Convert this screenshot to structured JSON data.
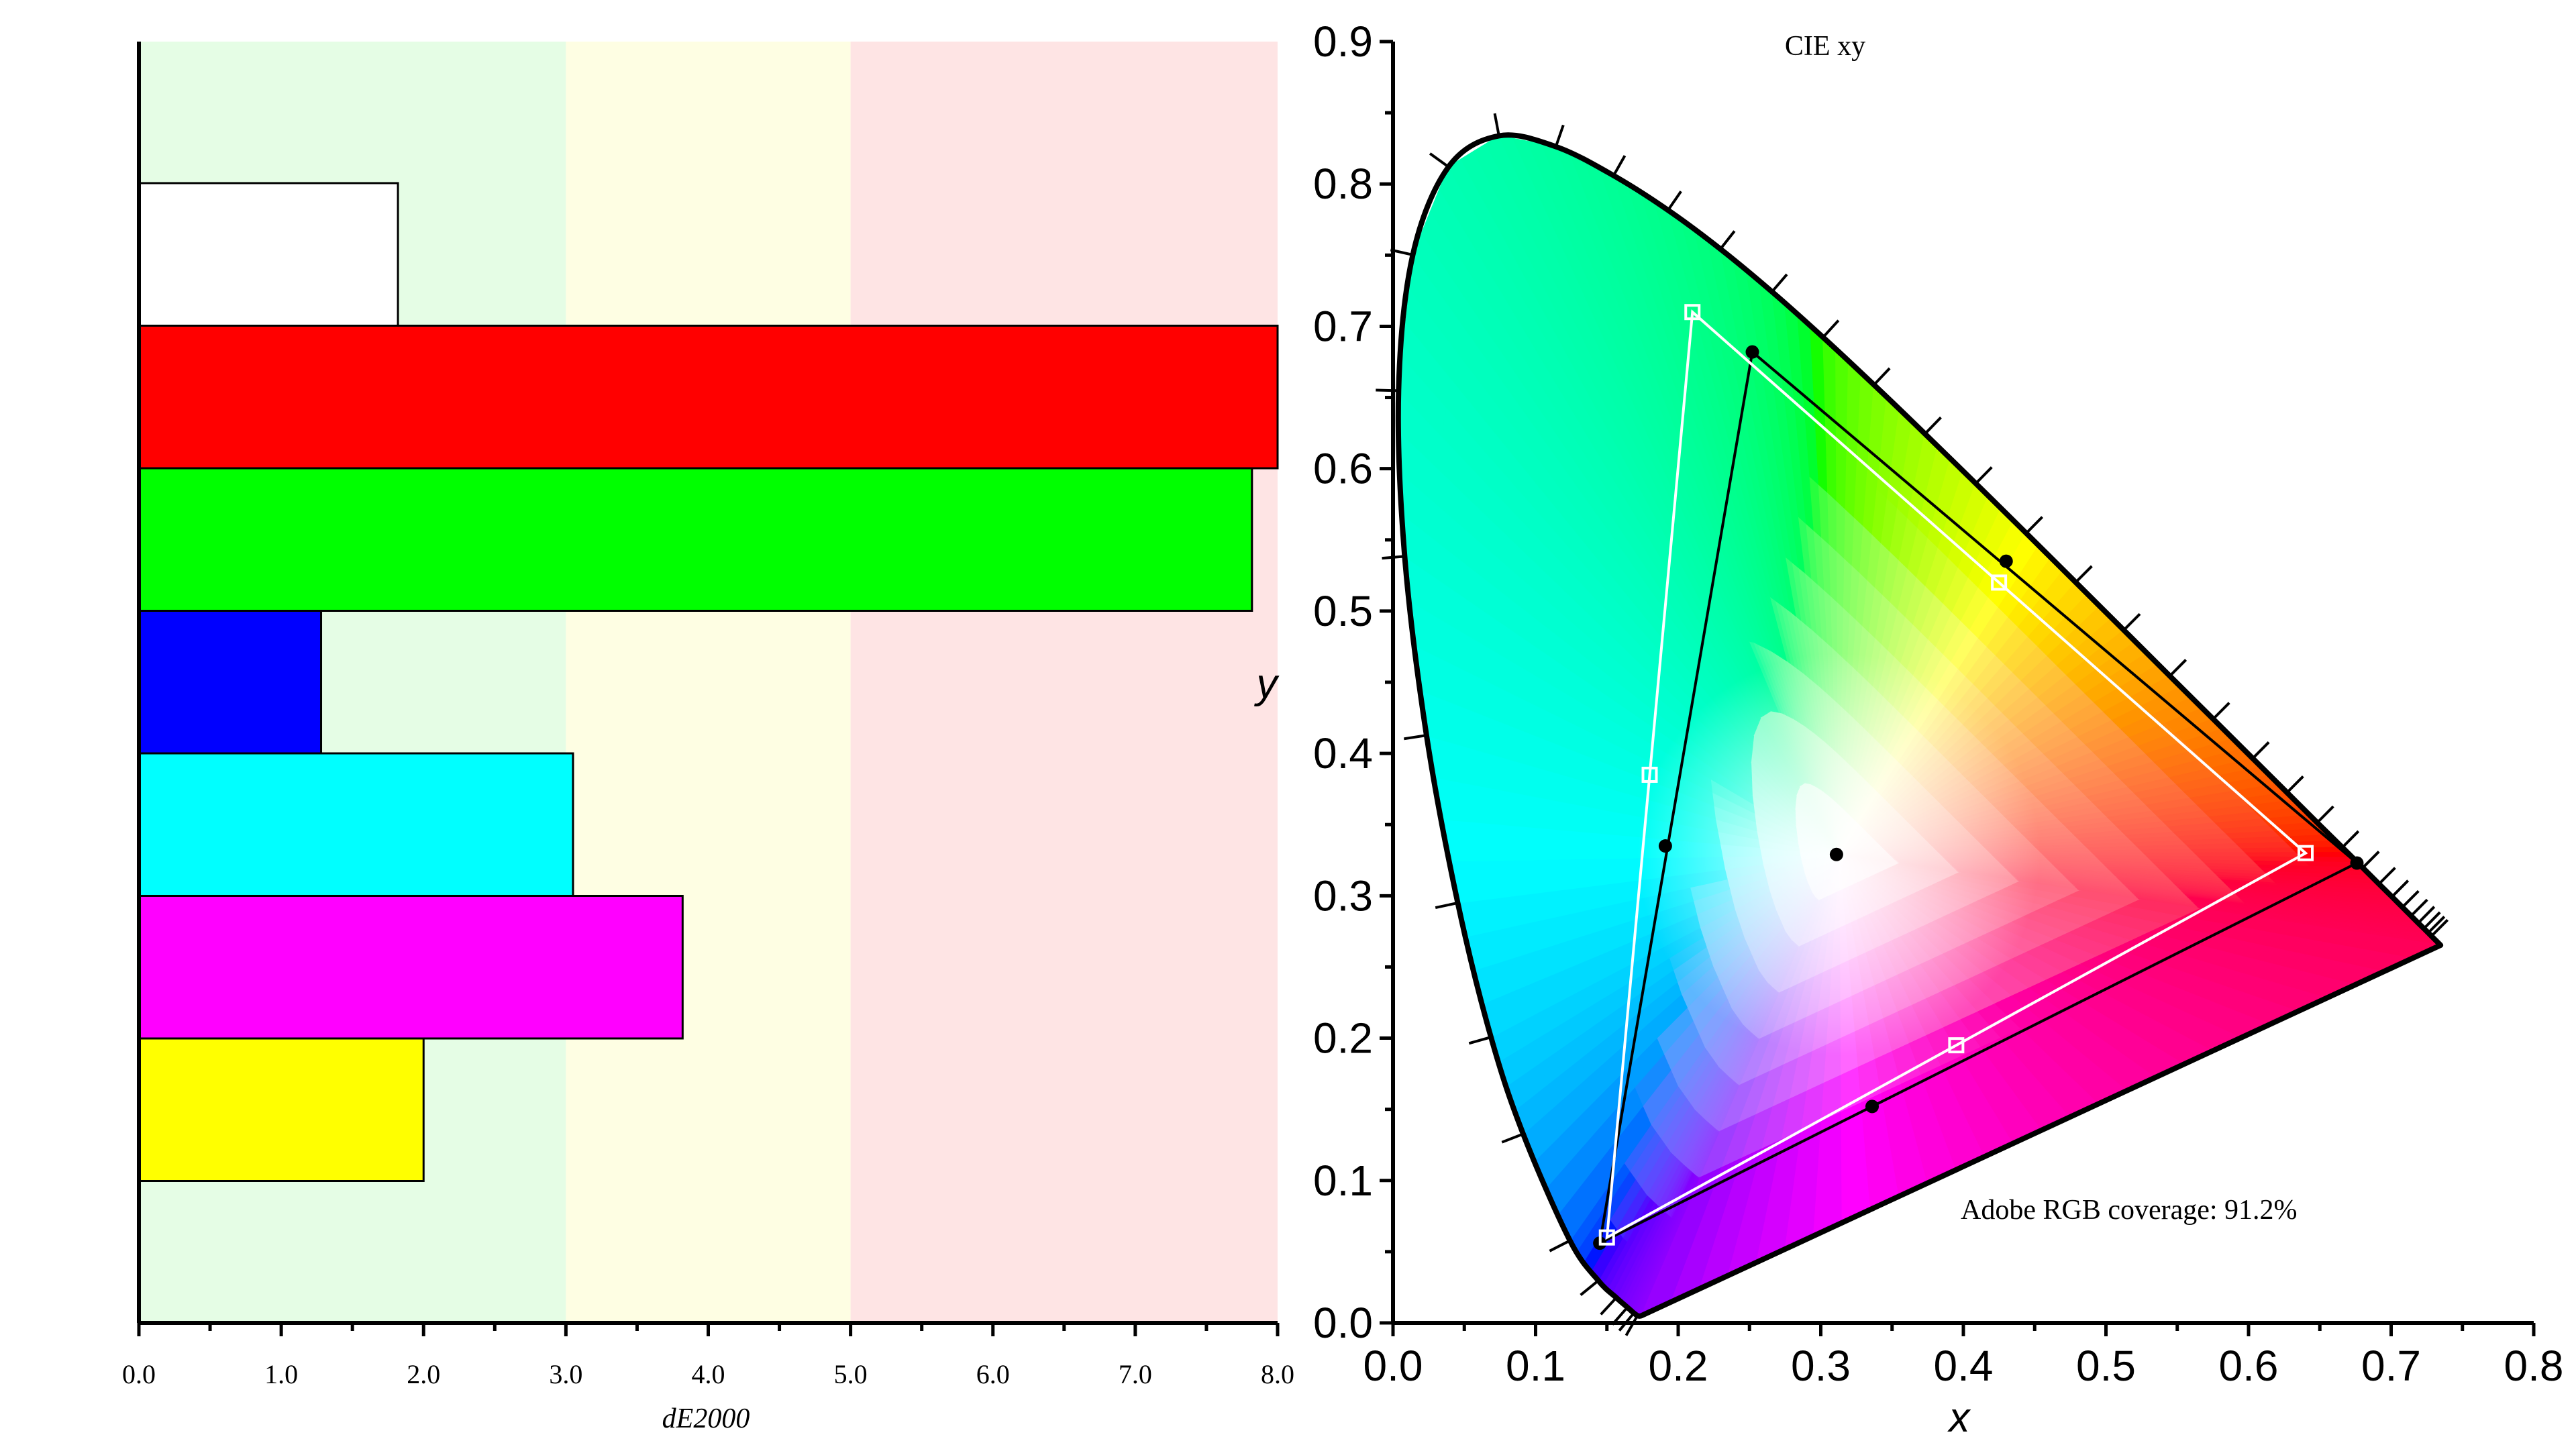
{
  "chart_data": [
    {
      "type": "bar",
      "orientation": "horizontal",
      "xlabel": "dE2000",
      "xlim": [
        0,
        8
      ],
      "x_ticks": [
        "0.0",
        "1.0",
        "2.0",
        "3.0",
        "4.0",
        "5.0",
        "6.0",
        "7.0",
        "8.0"
      ],
      "zones": [
        {
          "from": 0,
          "to": 3,
          "color": "#e5fde5"
        },
        {
          "from": 3,
          "to": 5,
          "color": "#fefee3"
        },
        {
          "from": 5,
          "to": 8,
          "color": "#fee4e4"
        }
      ],
      "bars": [
        {
          "value": 1.82,
          "color": "#ffffff"
        },
        {
          "value": 8.0,
          "color": "#ff0000"
        },
        {
          "value": 7.82,
          "color": "#00ff00"
        },
        {
          "value": 1.28,
          "color": "#0000ff"
        },
        {
          "value": 3.05,
          "color": "#00ffff"
        },
        {
          "value": 3.82,
          "color": "#ff00ff"
        },
        {
          "value": 2.0,
          "color": "#ffff00"
        }
      ]
    },
    {
      "type": "scatter",
      "title": "CIE xy",
      "xlabel": "x",
      "ylabel": "y",
      "xlim": [
        0,
        0.8
      ],
      "ylim": [
        0,
        0.9
      ],
      "x_ticks": [
        "0.0",
        "0.1",
        "0.2",
        "0.3",
        "0.4",
        "0.5",
        "0.6",
        "0.7",
        "0.8"
      ],
      "y_ticks": [
        "0.0",
        "0.1",
        "0.2",
        "0.3",
        "0.4",
        "0.5",
        "0.6",
        "0.7",
        "0.8",
        "0.9"
      ],
      "annotation": "Adobe RGB coverage: 91.2%",
      "locus": [
        [
          0.1741,
          0.005
        ],
        [
          0.1738,
          0.0049
        ],
        [
          0.1733,
          0.0048
        ],
        [
          0.1726,
          0.0048
        ],
        [
          0.1714,
          0.0051
        ],
        [
          0.1689,
          0.0069
        ],
        [
          0.1644,
          0.0109
        ],
        [
          0.1566,
          0.0177
        ],
        [
          0.144,
          0.0297
        ],
        [
          0.1241,
          0.0578
        ],
        [
          0.0913,
          0.1327
        ],
        [
          0.0687,
          0.2007
        ],
        [
          0.0454,
          0.295
        ],
        [
          0.0235,
          0.4127
        ],
        [
          0.0082,
          0.5384
        ],
        [
          0.0039,
          0.6548
        ],
        [
          0.0139,
          0.7502
        ],
        [
          0.0389,
          0.812
        ],
        [
          0.0743,
          0.8338
        ],
        [
          0.1142,
          0.8262
        ],
        [
          0.1547,
          0.8059
        ],
        [
          0.1929,
          0.7816
        ],
        [
          0.2296,
          0.7543
        ],
        [
          0.2658,
          0.7243
        ],
        [
          0.3016,
          0.6923
        ],
        [
          0.3373,
          0.6589
        ],
        [
          0.3731,
          0.6245
        ],
        [
          0.4087,
          0.5896
        ],
        [
          0.4441,
          0.5547
        ],
        [
          0.4788,
          0.5202
        ],
        [
          0.5125,
          0.4866
        ],
        [
          0.5448,
          0.4544
        ],
        [
          0.5752,
          0.4242
        ],
        [
          0.6029,
          0.3965
        ],
        [
          0.627,
          0.3725
        ],
        [
          0.6482,
          0.3514
        ],
        [
          0.6658,
          0.334
        ],
        [
          0.6801,
          0.3197
        ],
        [
          0.6915,
          0.3083
        ],
        [
          0.7006,
          0.2993
        ],
        [
          0.7079,
          0.292
        ],
        [
          0.714,
          0.2859
        ],
        [
          0.719,
          0.2809
        ],
        [
          0.723,
          0.277
        ],
        [
          0.726,
          0.274
        ],
        [
          0.7283,
          0.2717
        ],
        [
          0.7347,
          0.2653
        ]
      ],
      "reference_gamut": {
        "red": [
          0.64,
          0.33
        ],
        "green": [
          0.21,
          0.71
        ],
        "blue": [
          0.15,
          0.06
        ],
        "midpoints": [
          [
            0.425,
            0.52
          ],
          [
            0.18,
            0.385
          ],
          [
            0.395,
            0.195
          ]
        ],
        "white": [
          0.3127,
          0.329
        ]
      },
      "measured_gamut": {
        "red": [
          0.676,
          0.323
        ],
        "green": [
          0.252,
          0.682
        ],
        "blue": [
          0.145,
          0.056
        ],
        "midpoints": [
          [
            0.43,
            0.535
          ],
          [
            0.191,
            0.335
          ],
          [
            0.336,
            0.152
          ]
        ],
        "white": [
          0.311,
          0.329
        ]
      }
    }
  ]
}
